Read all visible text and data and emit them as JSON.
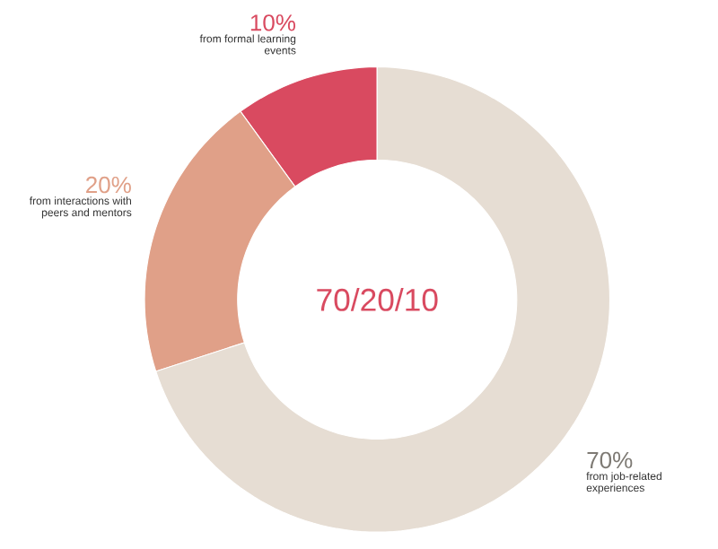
{
  "chart_data": {
    "type": "donut",
    "categories": [
      "from formal learning events",
      "from interactions with peers and mentors",
      "from job-related experiences"
    ],
    "values": [
      10,
      20,
      70
    ],
    "colors": [
      "#d94a60",
      "#e0a088",
      "#e6ddd3"
    ],
    "value_labels": [
      "10%",
      "20%",
      "70%"
    ],
    "annotations": [
      "70/20/10"
    ]
  }
}
